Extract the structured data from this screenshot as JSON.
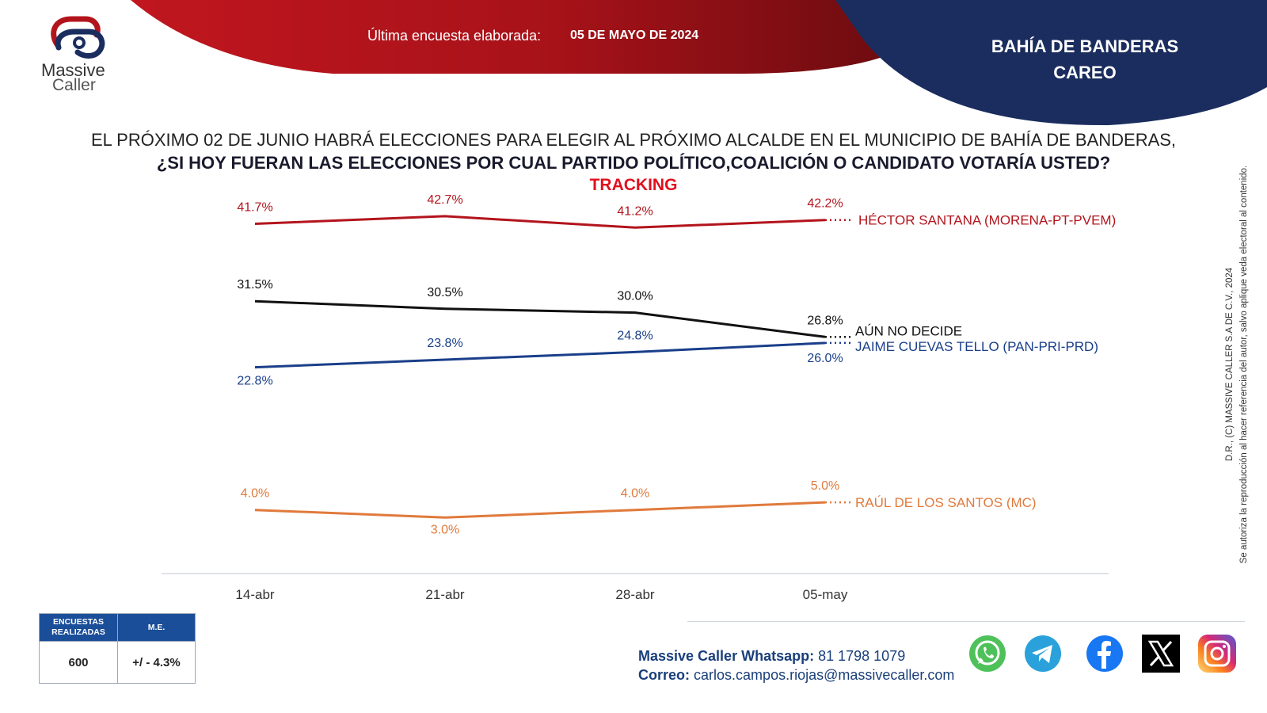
{
  "header": {
    "survey_label": "Última encuesta elaborada:",
    "survey_date": "05 DE MAYO DE 2024",
    "region_line1": "BAHÍA DE BANDERAS",
    "region_line2": "CAREO"
  },
  "logo": {
    "name_line1": "Massive",
    "name_line2": "Caller"
  },
  "question": {
    "line1": "EL PRÓXIMO 02 DE JUNIO HABRÁ ELECCIONES PARA ELEGIR AL PRÓXIMO ALCALDE EN EL MUNICIPIO DE BAHÍA DE BANDERAS,",
    "line2": "¿SI HOY FUERAN LAS ELECCIONES POR CUAL PARTIDO POLÍTICO,COALICIÓN O CANDIDATO VOTARÍA USTED?",
    "line3": "TRACKING"
  },
  "chart_data": {
    "type": "line",
    "title": "TRACKING",
    "categories": [
      "14-abr",
      "21-abr",
      "28-abr",
      "05-may"
    ],
    "ylim": [
      0,
      45
    ],
    "grid": false,
    "legend": "right-end-labels",
    "series": [
      {
        "name": "HÉCTOR SANTANA (MORENA-PT-PVEM)",
        "values": [
          41.7,
          42.7,
          41.2,
          42.2
        ],
        "labels": [
          "41.7%",
          "42.7%",
          "41.2%",
          "42.2%"
        ],
        "color": "#b3141c"
      },
      {
        "name": "AÚN NO DECIDE",
        "values": [
          31.5,
          30.5,
          30.0,
          26.8
        ],
        "labels": [
          "31.5%",
          "30.5%",
          "30.0%",
          "26.8%"
        ],
        "color": "#111111"
      },
      {
        "name": "JAIME CUEVAS TELLO (PAN-PRI-PRD)",
        "values": [
          22.8,
          23.8,
          24.8,
          26.0
        ],
        "labels": [
          "22.8%",
          "23.8%",
          "24.8%",
          "26.0%"
        ],
        "color": "#1a3f8a"
      },
      {
        "name": "RAÚL DE LOS SANTOS (MC)",
        "values": [
          4.0,
          3.0,
          4.0,
          5.0
        ],
        "labels": [
          "4.0%",
          "3.0%",
          "4.0%",
          "5.0%"
        ],
        "color": "#e07a3c"
      }
    ]
  },
  "sidebar_note": {
    "line1": "D.R., (C) MASSIVE CALLER S.A DE C.V., 2024",
    "line2": "Se autoriza la reproducción al hacer referencia del autor, salvo aplique veda electoral al contenido."
  },
  "stats": {
    "col1_header": "ENCUESTAS REALIZADAS",
    "col2_header": "M.E.",
    "col1_value": "600",
    "col2_value": "+/ - 4.3%"
  },
  "contact": {
    "whatsapp_label": "Massive Caller Whatsapp:",
    "whatsapp_number": "81 1798 1079",
    "email_label": "Correo:",
    "email": "carlos.campos.riojas@massivecaller.com"
  },
  "social": [
    "whatsapp-icon",
    "telegram-icon",
    "facebook-icon",
    "x-icon",
    "instagram-icon"
  ]
}
